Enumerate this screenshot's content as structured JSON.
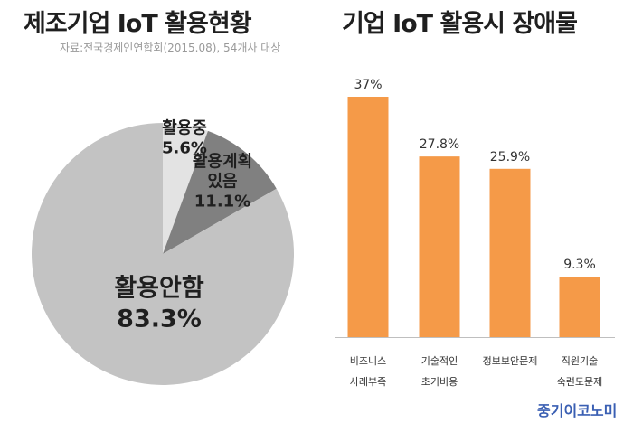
{
  "left_panel": {
    "title": "제조기업 IoT 활용현황",
    "source": "자료:전국경제인연합회(2015.08), 54개사 대상"
  },
  "right_panel": {
    "title": "기업 IoT 활용시 장애물"
  },
  "brand": "중기이코노미",
  "colors": {
    "bar": "#f59a48",
    "pie_in_use": "#e3e3e3",
    "pie_plan": "#808080",
    "pie_none": "#c3c3c3",
    "axis": "#bfbfbf",
    "brand": "#3a5fb3"
  },
  "chart_data": [
    {
      "type": "pie",
      "title": "제조기업 IoT 활용현황",
      "slices": [
        {
          "label_lines": [
            "활용중",
            "5.6%"
          ],
          "value": 5.6,
          "color": "#e3e3e3"
        },
        {
          "label_lines": [
            "활용계획",
            "있음",
            "11.1%"
          ],
          "value": 11.1,
          "color": "#808080"
        },
        {
          "label_lines": [
            "활용안함",
            "83.3%"
          ],
          "value": 83.3,
          "color": "#c3c3c3"
        }
      ]
    },
    {
      "type": "bar",
      "title": "기업 IoT 활용시 장애물",
      "unit": "%",
      "categories": [
        [
          "비즈니스",
          "사례부족"
        ],
        [
          "기술적인",
          "초기비용"
        ],
        [
          "정보보안문제"
        ],
        [
          "직원기술",
          "숙련도문제"
        ]
      ],
      "values": [
        37,
        27.8,
        25.9,
        9.3
      ],
      "value_labels": [
        "37%",
        "27.8%",
        "25.9%",
        "9.3%"
      ],
      "ylim": [
        0,
        40
      ],
      "grid": false,
      "legend": "none"
    }
  ]
}
